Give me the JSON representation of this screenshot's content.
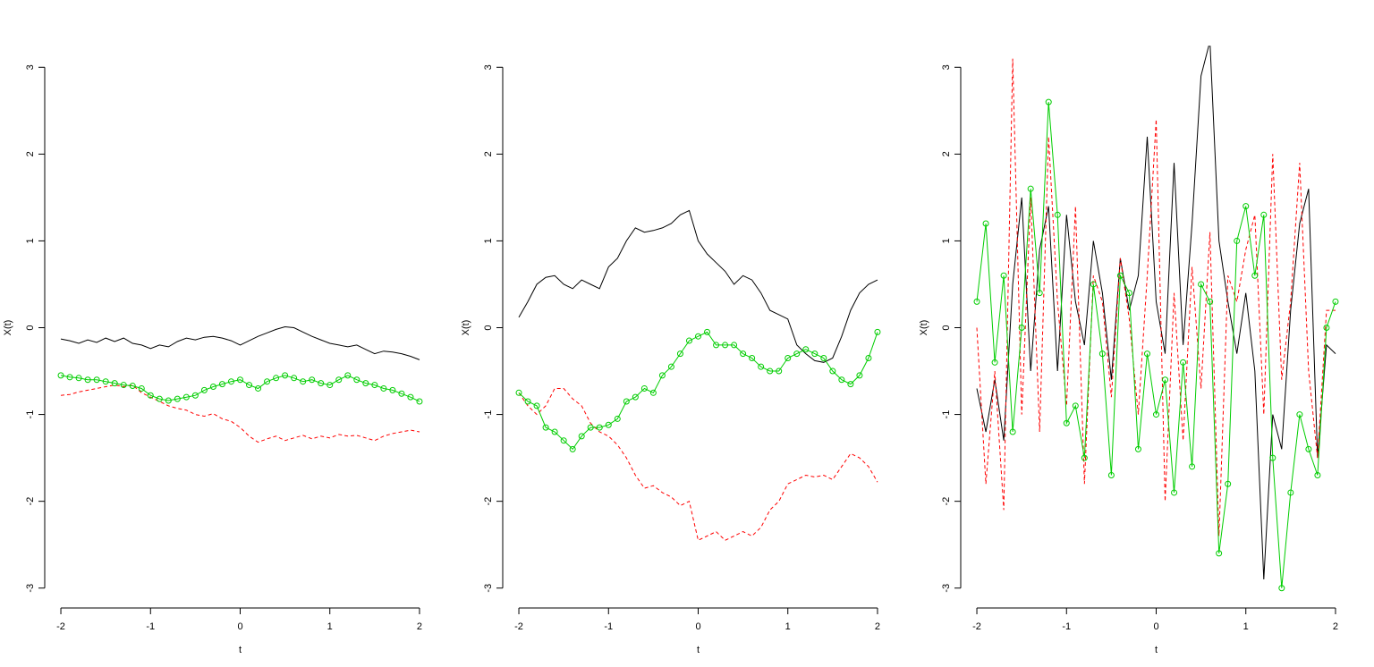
{
  "chart_data": [
    {
      "type": "line",
      "xlabel": "t",
      "ylabel": "X(t)",
      "xlim": [
        -2.16,
        2.16
      ],
      "ylim": [
        -3.25,
        3.25
      ],
      "xticks": [
        -2,
        -1,
        0,
        1,
        2
      ],
      "yticks": [
        -3,
        -2,
        -1,
        0,
        1,
        2,
        3
      ],
      "x": [
        -2,
        -1.9,
        -1.8,
        -1.7,
        -1.6,
        -1.5,
        -1.4,
        -1.3,
        -1.2,
        -1.1,
        -1,
        -0.9,
        -0.8,
        -0.7,
        -0.6,
        -0.5,
        -0.4,
        -0.3,
        -0.2,
        -0.1,
        0,
        0.1,
        0.2,
        0.3,
        0.4,
        0.5,
        0.6,
        0.7,
        0.8,
        0.9,
        1,
        1.1,
        1.2,
        1.3,
        1.4,
        1.5,
        1.6,
        1.7,
        1.8,
        1.9,
        2
      ],
      "series": [
        {
          "color": "#000000",
          "linestyle": "solid",
          "marker": "none",
          "values": [
            -0.13,
            -0.15,
            -0.18,
            -0.14,
            -0.17,
            -0.12,
            -0.16,
            -0.12,
            -0.18,
            -0.2,
            -0.24,
            -0.2,
            -0.22,
            -0.16,
            -0.12,
            -0.14,
            -0.11,
            -0.1,
            -0.12,
            -0.15,
            -0.2,
            -0.15,
            -0.1,
            -0.06,
            -0.02,
            0.01,
            0.0,
            -0.05,
            -0.1,
            -0.14,
            -0.18,
            -0.2,
            -0.22,
            -0.2,
            -0.25,
            -0.3,
            -0.27,
            -0.28,
            -0.3,
            -0.33,
            -0.37
          ]
        },
        {
          "color": "#ff0000",
          "linestyle": "dashed",
          "marker": "none",
          "values": [
            -0.78,
            -0.77,
            -0.74,
            -0.72,
            -0.7,
            -0.68,
            -0.66,
            -0.68,
            -0.66,
            -0.75,
            -0.8,
            -0.85,
            -0.9,
            -0.93,
            -0.95,
            -1.0,
            -1.02,
            -0.99,
            -1.05,
            -1.08,
            -1.15,
            -1.25,
            -1.32,
            -1.28,
            -1.25,
            -1.3,
            -1.27,
            -1.24,
            -1.28,
            -1.25,
            -1.27,
            -1.23,
            -1.25,
            -1.24,
            -1.27,
            -1.3,
            -1.25,
            -1.22,
            -1.2,
            -1.18,
            -1.2
          ]
        },
        {
          "color": "#00cd00",
          "linestyle": "solid",
          "marker": "circle",
          "values": [
            -0.55,
            -0.57,
            -0.58,
            -0.6,
            -0.6,
            -0.62,
            -0.64,
            -0.66,
            -0.67,
            -0.7,
            -0.78,
            -0.82,
            -0.84,
            -0.82,
            -0.8,
            -0.78,
            -0.72,
            -0.68,
            -0.65,
            -0.62,
            -0.6,
            -0.66,
            -0.7,
            -0.62,
            -0.58,
            -0.55,
            -0.58,
            -0.62,
            -0.6,
            -0.64,
            -0.66,
            -0.6,
            -0.55,
            -0.6,
            -0.64,
            -0.66,
            -0.7,
            -0.72,
            -0.76,
            -0.8,
            -0.85
          ]
        }
      ]
    },
    {
      "type": "line",
      "xlabel": "t",
      "ylabel": "X(t)",
      "xlim": [
        -2.16,
        2.16
      ],
      "ylim": [
        -3.25,
        3.25
      ],
      "xticks": [
        -2,
        -1,
        0,
        1,
        2
      ],
      "yticks": [
        -3,
        -2,
        -1,
        0,
        1,
        2,
        3
      ],
      "x": [
        -2,
        -1.9,
        -1.8,
        -1.7,
        -1.6,
        -1.5,
        -1.4,
        -1.3,
        -1.2,
        -1.1,
        -1,
        -0.9,
        -0.8,
        -0.7,
        -0.6,
        -0.5,
        -0.4,
        -0.3,
        -0.2,
        -0.1,
        0,
        0.1,
        0.2,
        0.3,
        0.4,
        0.5,
        0.6,
        0.7,
        0.8,
        0.9,
        1,
        1.1,
        1.2,
        1.3,
        1.4,
        1.5,
        1.6,
        1.7,
        1.8,
        1.9,
        2
      ],
      "series": [
        {
          "color": "#000000",
          "linestyle": "solid",
          "marker": "none",
          "values": [
            0.12,
            0.3,
            0.5,
            0.58,
            0.6,
            0.5,
            0.45,
            0.55,
            0.5,
            0.45,
            0.7,
            0.8,
            1.0,
            1.15,
            1.1,
            1.12,
            1.15,
            1.2,
            1.3,
            1.35,
            1.0,
            0.85,
            0.75,
            0.65,
            0.5,
            0.6,
            0.55,
            0.4,
            0.2,
            0.15,
            0.1,
            -0.2,
            -0.3,
            -0.38,
            -0.4,
            -0.35,
            -0.1,
            0.2,
            0.4,
            0.5,
            0.55
          ]
        },
        {
          "color": "#ff0000",
          "linestyle": "dashed",
          "marker": "none",
          "values": [
            -0.75,
            -0.9,
            -1.0,
            -0.9,
            -0.7,
            -0.7,
            -0.82,
            -0.9,
            -1.1,
            -1.2,
            -1.25,
            -1.35,
            -1.5,
            -1.7,
            -1.85,
            -1.82,
            -1.9,
            -1.95,
            -2.05,
            -2.0,
            -2.45,
            -2.4,
            -2.35,
            -2.45,
            -2.4,
            -2.35,
            -2.4,
            -2.3,
            -2.1,
            -2.0,
            -1.8,
            -1.75,
            -1.7,
            -1.72,
            -1.7,
            -1.75,
            -1.6,
            -1.45,
            -1.5,
            -1.6,
            -1.78
          ]
        },
        {
          "color": "#00cd00",
          "linestyle": "solid",
          "marker": "circle",
          "values": [
            -0.75,
            -0.85,
            -0.9,
            -1.15,
            -1.2,
            -1.3,
            -1.4,
            -1.25,
            -1.15,
            -1.15,
            -1.12,
            -1.05,
            -0.85,
            -0.8,
            -0.7,
            -0.75,
            -0.55,
            -0.45,
            -0.3,
            -0.15,
            -0.1,
            -0.05,
            -0.2,
            -0.2,
            -0.2,
            -0.3,
            -0.35,
            -0.45,
            -0.5,
            -0.5,
            -0.35,
            -0.3,
            -0.25,
            -0.3,
            -0.35,
            -0.5,
            -0.6,
            -0.65,
            -0.55,
            -0.35,
            -0.05
          ]
        }
      ]
    },
    {
      "type": "line",
      "xlabel": "t",
      "ylabel": "X(t)",
      "xlim": [
        -2.16,
        2.16
      ],
      "ylim": [
        -3.25,
        3.25
      ],
      "xticks": [
        -2,
        -1,
        0,
        1,
        2
      ],
      "yticks": [
        -3,
        -2,
        -1,
        0,
        1,
        2,
        3
      ],
      "x": [
        -2,
        -1.9,
        -1.8,
        -1.7,
        -1.6,
        -1.5,
        -1.4,
        -1.3,
        -1.2,
        -1.1,
        -1,
        -0.9,
        -0.8,
        -0.7,
        -0.6,
        -0.5,
        -0.4,
        -0.3,
        -0.2,
        -0.1,
        0,
        0.1,
        0.2,
        0.3,
        0.4,
        0.5,
        0.6,
        0.7,
        0.8,
        0.9,
        1,
        1.1,
        1.2,
        1.3,
        1.4,
        1.5,
        1.6,
        1.7,
        1.8,
        1.9,
        2
      ],
      "series": [
        {
          "color": "#000000",
          "linestyle": "solid",
          "marker": "none",
          "values": [
            -0.7,
            -1.2,
            -0.6,
            -1.3,
            0.5,
            1.5,
            -0.5,
            0.9,
            1.4,
            -0.5,
            1.3,
            0.3,
            -0.2,
            1.0,
            0.4,
            -0.6,
            0.8,
            0.2,
            0.6,
            2.2,
            0.3,
            -0.3,
            1.9,
            -0.2,
            1.2,
            2.9,
            3.3,
            1.0,
            0.3,
            -0.3,
            0.4,
            -0.5,
            -2.9,
            -1.0,
            -1.4,
            0.2,
            1.2,
            1.6,
            -1.5,
            -0.2,
            -0.3
          ]
        },
        {
          "color": "#ff0000",
          "linestyle": "dashed",
          "marker": "none",
          "values": [
            0.0,
            -1.8,
            -0.5,
            -2.1,
            3.1,
            -1.0,
            1.5,
            -1.2,
            2.2,
            0.3,
            -0.9,
            1.4,
            -1.8,
            0.6,
            0.3,
            -0.8,
            0.8,
            0.1,
            -1.0,
            0.6,
            2.4,
            -2.0,
            0.4,
            -1.3,
            0.7,
            -0.7,
            1.1,
            -2.4,
            0.6,
            0.3,
            0.9,
            1.3,
            -1.0,
            2.0,
            -0.6,
            0.3,
            1.9,
            -0.5,
            -1.5,
            0.2,
            0.2
          ]
        },
        {
          "color": "#00cd00",
          "linestyle": "solid",
          "marker": "circle",
          "values": [
            0.3,
            1.2,
            -0.4,
            0.6,
            -1.2,
            0.0,
            1.6,
            0.4,
            2.6,
            1.3,
            -1.1,
            -0.9,
            -1.5,
            0.5,
            -0.3,
            -1.7,
            0.6,
            0.4,
            -1.4,
            -0.3,
            -1.0,
            -0.6,
            -1.9,
            -0.4,
            -1.6,
            0.5,
            0.3,
            -2.6,
            -1.8,
            1.0,
            1.4,
            0.6,
            1.3,
            -1.5,
            -3.0,
            -1.9,
            -1.0,
            -1.4,
            -1.7,
            0.0,
            0.3
          ]
        }
      ]
    }
  ]
}
